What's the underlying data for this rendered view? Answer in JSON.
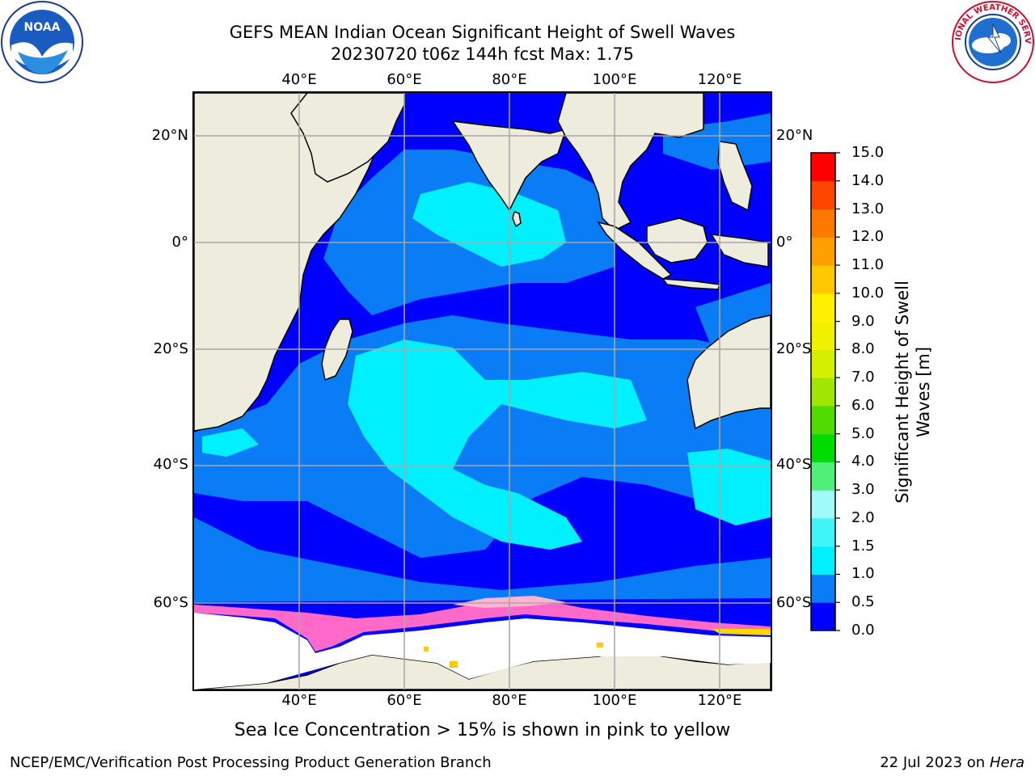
{
  "title": {
    "line1": "GEFS MEAN Indian Ocean Significant Height of Swell Waves",
    "line2": "20230720 t06z 144h fcst   Max: 1.75"
  },
  "logos": {
    "left": "noaa-logo",
    "left_text": "NOAA",
    "right": "national-weather-service-logo",
    "right_text": "NATIONAL WEATHER SERVICE"
  },
  "map": {
    "region": "Indian Ocean",
    "lon_ticks": [
      "40°E",
      "60°E",
      "80°E",
      "100°E",
      "120°E"
    ],
    "lat_ticks": [
      "20°N",
      "0°",
      "20°S",
      "40°S",
      "60°S"
    ],
    "lon_range": [
      20,
      130
    ],
    "lat_range": [
      -73,
      28
    ],
    "grid": true,
    "land_color": "#eeecdc",
    "ocean_colors": {
      "0.0-0.5": "#0000ff",
      "0.5-1.0": "#0a7cf6",
      "1.0-1.5": "#00f0ff"
    },
    "sea_ice_colors": [
      "#ff69c8",
      "#ffb4d2",
      "#ffd700"
    ]
  },
  "colorbar": {
    "label": "Significant Height of Swell Waves [m]",
    "label_line1": "Significant Height of Swell",
    "label_line2": "Waves [m]",
    "ticks": [
      "0.0",
      "0.5",
      "1.0",
      "1.5",
      "2.0",
      "3.0",
      "4.0",
      "5.0",
      "6.0",
      "7.0",
      "8.0",
      "9.0",
      "10.0",
      "11.0",
      "12.0",
      "13.0",
      "14.0",
      "15.0"
    ],
    "colors": [
      "#0000ff",
      "#0a7cf6",
      "#00f0ff",
      "#40f5f5",
      "#a0fafa",
      "#50f078",
      "#00dc00",
      "#50dc00",
      "#a0e600",
      "#d2f000",
      "#f0f000",
      "#fff000",
      "#ffc800",
      "#ffa000",
      "#ff7800",
      "#ff4600",
      "#ff0000"
    ]
  },
  "note": "Sea Ice Concentration > 15% is shown in pink to yellow",
  "footer": {
    "left": "NCEP/EMC/Verification Post Processing Product Generation Branch",
    "right_prefix": "22 Jul 2023 on ",
    "right_host": "Hera"
  }
}
